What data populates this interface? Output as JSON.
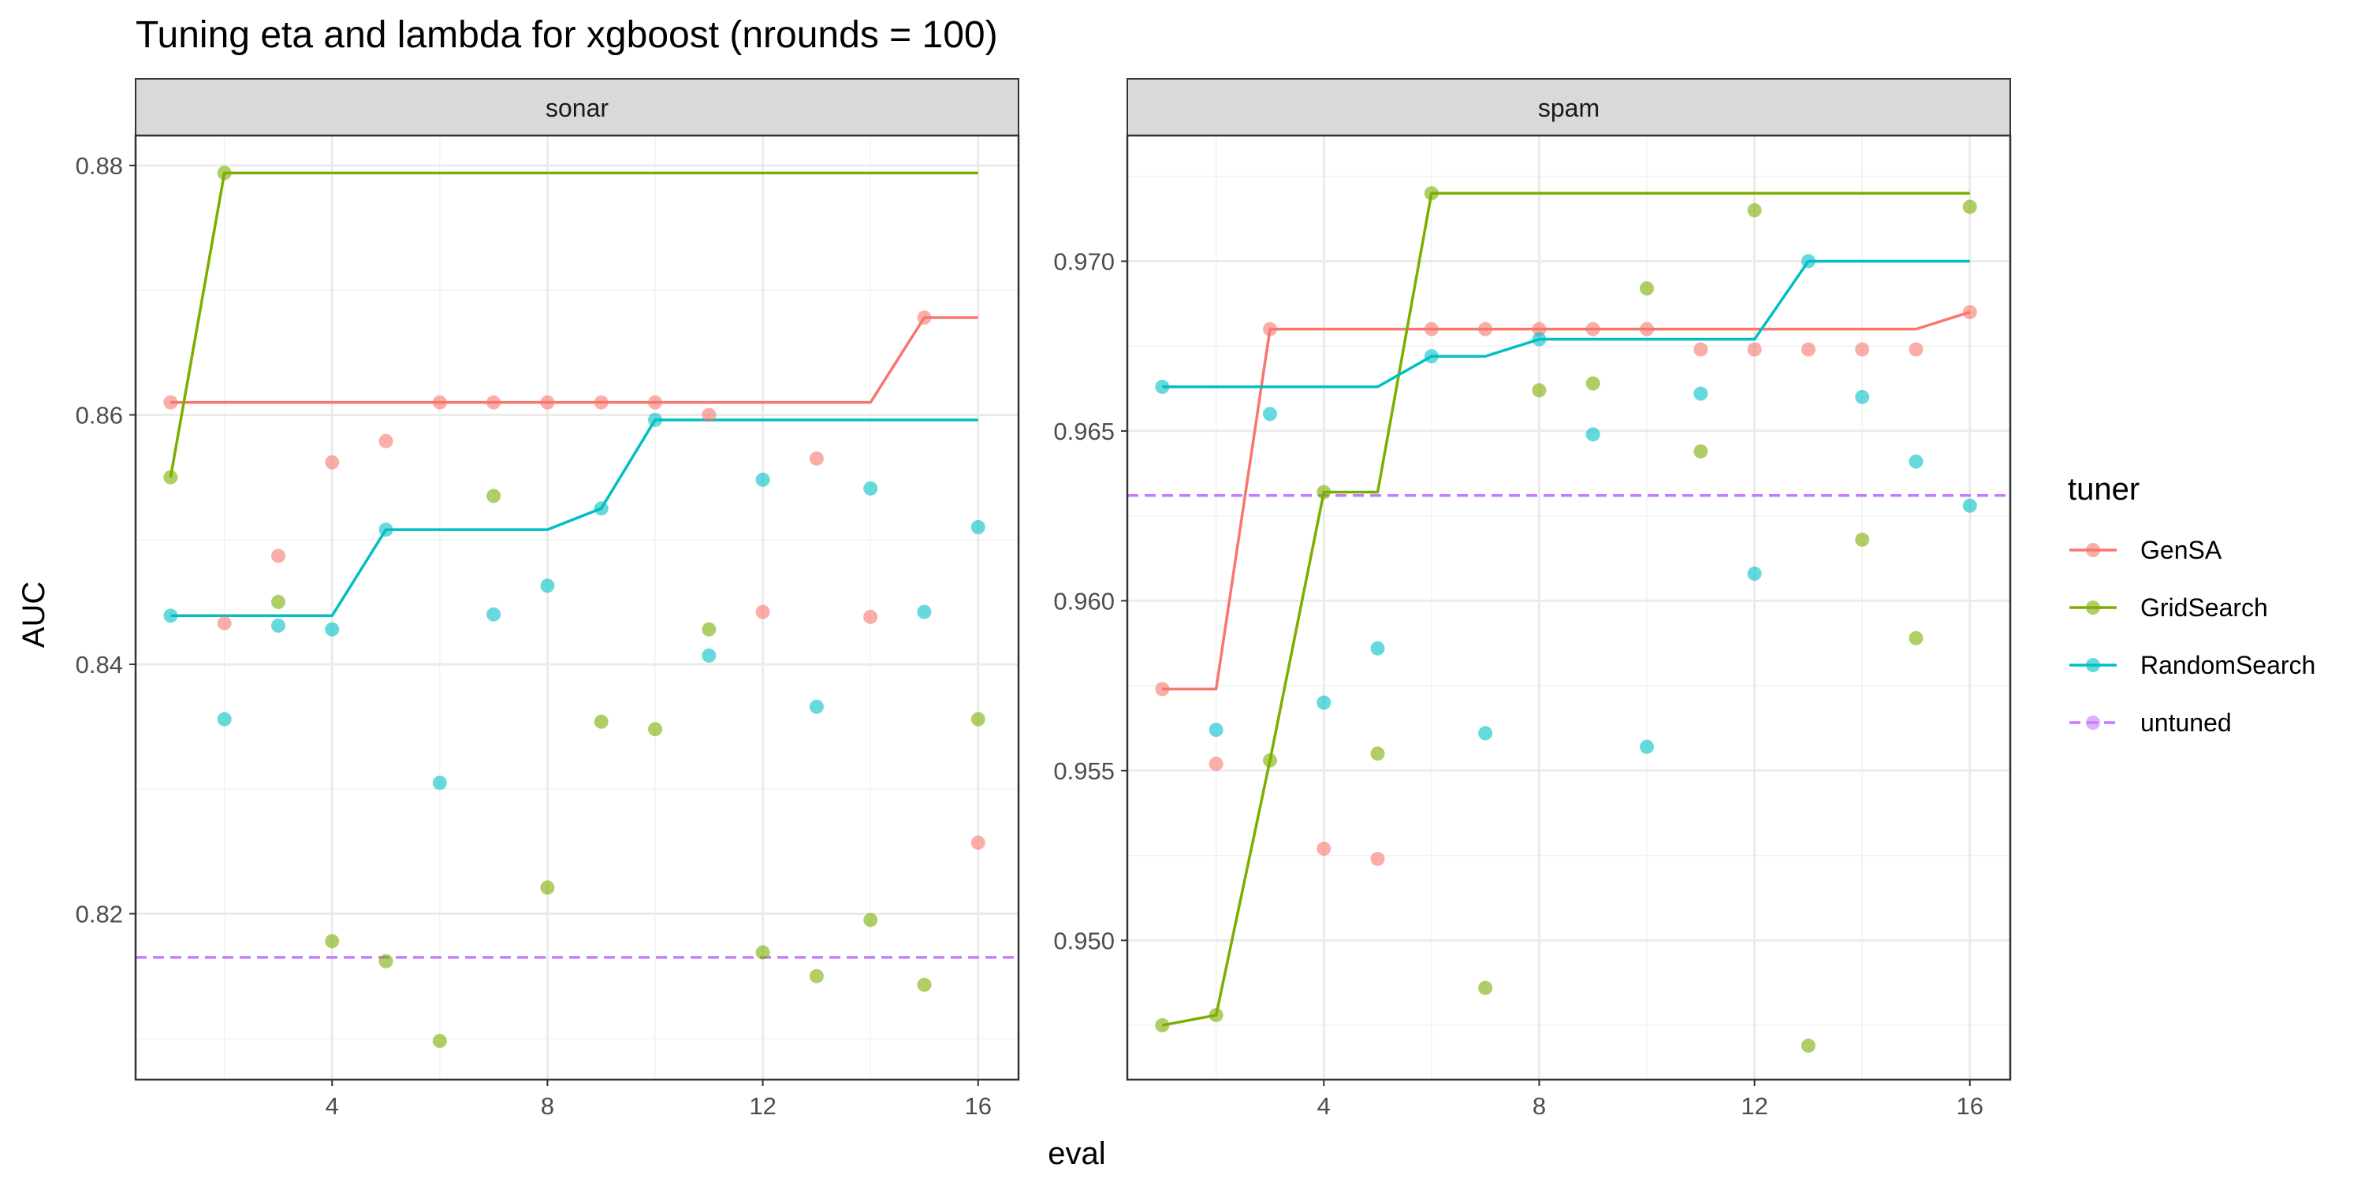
{
  "chart_data": {
    "type": "scatter",
    "title": "Tuning eta and lambda for xgboost (nrounds = 100)",
    "xlabel": "eval",
    "ylabel": "AUC",
    "grid": true,
    "legend": {
      "title": "tuner",
      "position": "right",
      "entries": [
        "GenSA",
        "GridSearch",
        "RandomSearch",
        "untuned"
      ]
    },
    "colors": {
      "GenSA": "#F8766D",
      "GridSearch": "#7CAE00",
      "RandomSearch": "#00BFC4",
      "untuned": "#C77CFF"
    },
    "facets": [
      {
        "name": "sonar",
        "xlim": [
          0.35,
          16.75
        ],
        "ylim": [
          0.8067,
          0.8824
        ],
        "x_ticks": [
          4,
          8,
          12,
          16
        ],
        "x_tick_labels": [
          "4",
          "8",
          "12",
          "16"
        ],
        "y_ticks": [
          0.82,
          0.84,
          0.86,
          0.88
        ],
        "y_tick_labels": [
          "0.82",
          "0.84",
          "0.86",
          "0.88"
        ],
        "untuned": 0.8165,
        "series": [
          {
            "name": "GenSA",
            "x": [
              1,
              2,
              3,
              4,
              5,
              6,
              7,
              8,
              9,
              10,
              11,
              12,
              13,
              14,
              15,
              16
            ],
            "points": [
              0.861,
              0.8433,
              0.8487,
              0.8562,
              0.8579,
              0.861,
              0.861,
              0.861,
              0.861,
              0.861,
              0.86,
              0.8442,
              0.8565,
              0.8438,
              0.8678,
              0.8257
            ],
            "best": [
              0.861,
              0.861,
              0.861,
              0.861,
              0.861,
              0.861,
              0.861,
              0.861,
              0.861,
              0.861,
              0.861,
              0.861,
              0.861,
              0.861,
              0.8678,
              0.8678
            ]
          },
          {
            "name": "GridSearch",
            "x": [
              1,
              2,
              3,
              4,
              5,
              6,
              7,
              8,
              9,
              10,
              11,
              12,
              13,
              14,
              15,
              16
            ],
            "points": [
              0.855,
              0.8794,
              0.845,
              0.8178,
              0.8162,
              0.8098,
              0.8535,
              0.8221,
              0.8354,
              0.8348,
              0.8428,
              0.8169,
              0.815,
              0.8195,
              0.8143,
              0.8356
            ],
            "best": [
              0.855,
              0.8794,
              0.8794,
              0.8794,
              0.8794,
              0.8794,
              0.8794,
              0.8794,
              0.8794,
              0.8794,
              0.8794,
              0.8794,
              0.8794,
              0.8794,
              0.8794,
              0.8794
            ]
          },
          {
            "name": "RandomSearch",
            "x": [
              1,
              2,
              3,
              4,
              5,
              6,
              7,
              8,
              9,
              10,
              11,
              12,
              13,
              14,
              15,
              16
            ],
            "points": [
              0.8439,
              0.8356,
              0.8431,
              0.8428,
              0.8508,
              0.8305,
              0.844,
              0.8463,
              0.8525,
              0.8596,
              0.8407,
              0.8548,
              0.8366,
              0.8541,
              0.8442,
              0.851
            ],
            "best": [
              0.8439,
              0.8439,
              0.8439,
              0.8439,
              0.8508,
              0.8508,
              0.8508,
              0.8508,
              0.8525,
              0.8596,
              0.8596,
              0.8596,
              0.8596,
              0.8596,
              0.8596,
              0.8596
            ]
          }
        ]
      },
      {
        "name": "spam",
        "xlim": [
          0.35,
          16.75
        ],
        "ylim": [
          0.9459,
          0.9737
        ],
        "x_ticks": [
          4,
          8,
          12,
          16
        ],
        "x_tick_labels": [
          "4",
          "8",
          "12",
          "16"
        ],
        "y_ticks": [
          0.95,
          0.955,
          0.96,
          0.965,
          0.97
        ],
        "y_tick_labels": [
          "0.950",
          "0.955",
          "0.960",
          "0.965",
          "0.970"
        ],
        "untuned": 0.9631,
        "series": [
          {
            "name": "GenSA",
            "x": [
              1,
              2,
              3,
              4,
              5,
              6,
              7,
              8,
              9,
              10,
              11,
              12,
              13,
              14,
              15,
              16
            ],
            "points": [
              0.9574,
              0.9552,
              0.968,
              0.9527,
              0.9524,
              0.968,
              0.968,
              0.968,
              0.968,
              0.968,
              0.9674,
              0.9674,
              0.9674,
              0.9674,
              0.9674,
              0.9685
            ],
            "best": [
              0.9574,
              0.9574,
              0.968,
              0.968,
              0.968,
              0.968,
              0.968,
              0.968,
              0.968,
              0.968,
              0.968,
              0.968,
              0.968,
              0.968,
              0.968,
              0.9685
            ]
          },
          {
            "name": "GridSearch",
            "x": [
              1,
              2,
              3,
              4,
              5,
              6,
              7,
              8,
              9,
              10,
              11,
              12,
              13,
              14,
              15,
              16
            ],
            "points": [
              0.9475,
              0.9478,
              0.9553,
              0.9632,
              0.9555,
              0.972,
              0.9486,
              0.9662,
              0.9664,
              0.9692,
              0.9644,
              0.9715,
              0.9469,
              0.9618,
              0.9589,
              0.9716
            ],
            "best": [
              0.9475,
              0.9478,
              0.9553,
              0.9632,
              0.9632,
              0.972,
              0.972,
              0.972,
              0.972,
              0.972,
              0.972,
              0.972,
              0.972,
              0.972,
              0.972,
              0.972
            ]
          },
          {
            "name": "RandomSearch",
            "x": [
              1,
              2,
              3,
              4,
              5,
              6,
              7,
              8,
              9,
              10,
              11,
              12,
              13,
              14,
              15,
              16
            ],
            "points": [
              0.9663,
              0.9562,
              0.9655,
              0.957,
              0.9586,
              0.9672,
              0.9561,
              0.9677,
              0.9649,
              0.9557,
              0.9661,
              0.9608,
              0.97,
              0.966,
              0.9641,
              0.9628
            ],
            "best": [
              0.9663,
              0.9663,
              0.9663,
              0.9663,
              0.9663,
              0.9672,
              0.9672,
              0.9677,
              0.9677,
              0.9677,
              0.9677,
              0.9677,
              0.97,
              0.97,
              0.97,
              0.97
            ]
          }
        ]
      }
    ]
  }
}
